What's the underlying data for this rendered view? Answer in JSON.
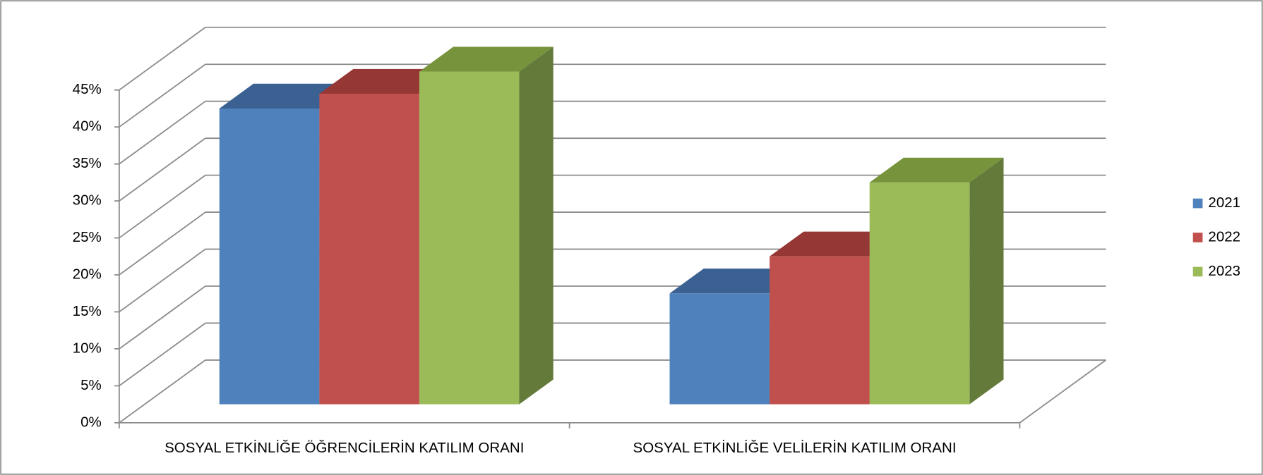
{
  "chart_data": {
    "type": "bar3d",
    "categories": [
      "SOSYAL ETKİNLİĞE ÖĞRENCİLERİN KATILIM ORANI",
      "SOSYAL ETKİNLİĞE VELİLERİN KATILIM ORANI"
    ],
    "series": [
      {
        "name": "2021",
        "color": "#4f81bd",
        "top": "#3b6192",
        "side": "#385d8a",
        "values": [
          40,
          15
        ]
      },
      {
        "name": "2022",
        "color": "#c0504d",
        "top": "#953735",
        "side": "#8c3836",
        "values": [
          42,
          20
        ]
      },
      {
        "name": "2023",
        "color": "#9bbb59",
        "top": "#77933c",
        "side": "#647a3a",
        "values": [
          45,
          30
        ]
      }
    ],
    "ylim": [
      0,
      45
    ],
    "yticks": [
      {
        "value": 0,
        "label": "0%"
      },
      {
        "value": 5,
        "label": "5%"
      },
      {
        "value": 10,
        "label": "10%"
      },
      {
        "value": 15,
        "label": "15%"
      },
      {
        "value": 20,
        "label": "20%"
      },
      {
        "value": 25,
        "label": "25%"
      },
      {
        "value": 30,
        "label": "30%"
      },
      {
        "value": 35,
        "label": "35%"
      },
      {
        "value": 40,
        "label": "40%"
      },
      {
        "value": 45,
        "label": "45%"
      }
    ],
    "grid": true,
    "legend": "right"
  }
}
